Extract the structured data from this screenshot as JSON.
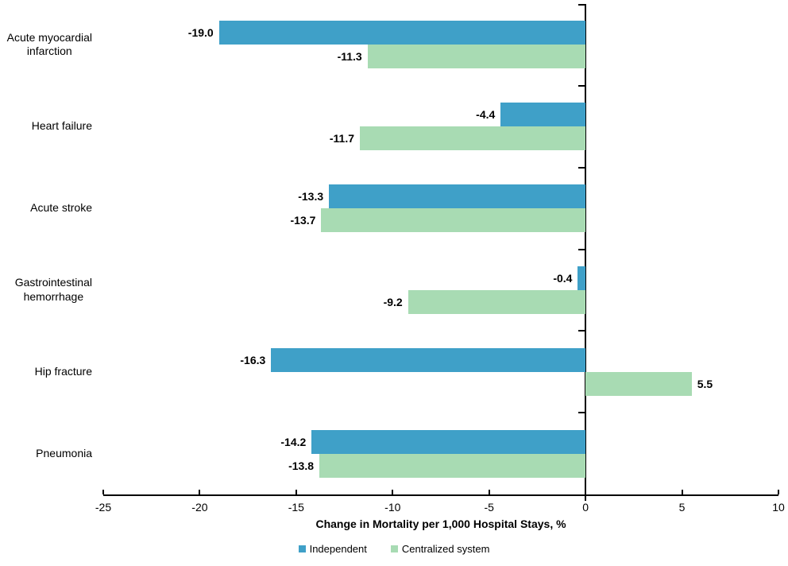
{
  "chart_data": {
    "type": "bar",
    "orientation": "horizontal",
    "title": "",
    "xlabel": "Change in Mortality per 1,000 Hospital Stays, %",
    "xlim": [
      -25,
      10
    ],
    "xticks": [
      -25,
      -20,
      -15,
      -10,
      -5,
      0,
      5,
      10
    ],
    "grid": false,
    "legend_position": "bottom",
    "value_labels": "outside-end, one decimal, bold",
    "categories": [
      "Acute myocardial\ninfarction",
      "Heart failure",
      "Acute stroke",
      "Gastrointestinal\nhemorrhage",
      "Hip fracture",
      "Pneumonia"
    ],
    "series": [
      {
        "name": "Independent",
        "color": "#3FA0C8",
        "values": [
          -19.0,
          -4.4,
          -13.3,
          -0.4,
          -16.3,
          -14.2
        ]
      },
      {
        "name": "Centralized system",
        "color": "#A8DBB3",
        "values": [
          -11.3,
          -11.7,
          -13.7,
          -9.2,
          5.5,
          -13.8
        ]
      }
    ],
    "axis_color": "#000000"
  }
}
